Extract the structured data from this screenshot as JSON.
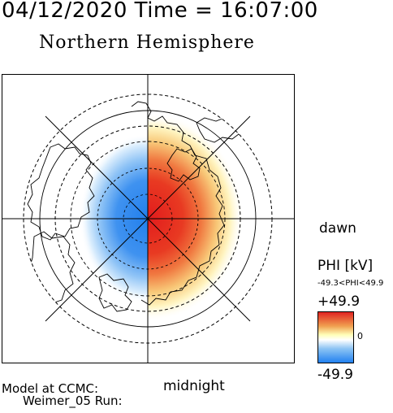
{
  "header": {
    "timestamp": "04/12/2020 Time = 16:07:00",
    "title": "Northern Hemisphere"
  },
  "map": {
    "orientation_labels": {
      "dawn": "dawn",
      "midnight": "midnight"
    },
    "potential_pattern": {
      "positive_cell_color": "#e8241c",
      "negative_cell_color": "#2a8ae6",
      "positive_side": "dawn",
      "negative_side": "dusk"
    },
    "grid": {
      "latitude_circles": 4,
      "meridians": 12,
      "line_style": "solid and dashed"
    }
  },
  "legend": {
    "title": "PHI [kV]",
    "range_text": "-49.3<PHI<49.9",
    "max_label": "+49.9",
    "zero_label": "0",
    "min_label": "-49.9",
    "colormap": [
      "#1f7ff0",
      "#ffffff",
      "#ffffb0",
      "#f0c060",
      "#e02020"
    ]
  },
  "footer": {
    "model_line1": "Model at CCMC:",
    "model_line2": "Weimer_05 Run:"
  }
}
